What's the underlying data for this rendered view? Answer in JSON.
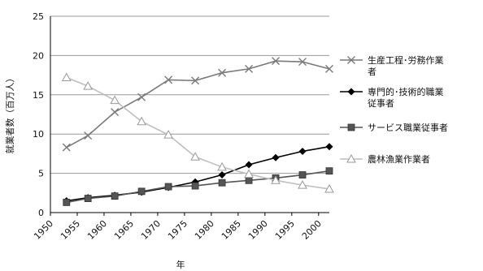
{
  "chart_data": {
    "type": "line",
    "xlabel": "年",
    "ylabel": "就業者数（百万人）",
    "x": [
      1953,
      1957,
      1962,
      1967,
      1972,
      1977,
      1982,
      1987,
      1992,
      1997,
      2002
    ],
    "xticks": [
      "1950",
      "1955",
      "1960",
      "1965",
      "1970",
      "1975",
      "1980",
      "1985",
      "1990",
      "1995",
      "2000"
    ],
    "xlim": [
      1950,
      2002
    ],
    "ylim": [
      0,
      25
    ],
    "yticks": [
      0,
      5,
      10,
      15,
      20,
      25
    ],
    "grid": "horizontal",
    "legend_position": "right",
    "series": [
      {
        "name": "生産工程･労務作業者",
        "marker": "x",
        "color": "#7a7a7a",
        "values": [
          8.3,
          9.8,
          12.8,
          14.7,
          16.9,
          16.8,
          17.8,
          18.3,
          19.3,
          19.2,
          18.3
        ]
      },
      {
        "name": "専門的･技術的職業従事者",
        "marker": "diamond",
        "color": "#000000",
        "values": [
          1.5,
          1.9,
          2.2,
          2.6,
          3.2,
          3.9,
          4.8,
          6.1,
          7.0,
          7.8,
          8.4
        ]
      },
      {
        "name": "サービス職業従事者",
        "marker": "square",
        "color": "#555555",
        "values": [
          1.3,
          1.8,
          2.1,
          2.7,
          3.3,
          3.4,
          3.8,
          4.1,
          4.4,
          4.8,
          5.3
        ]
      },
      {
        "name": "農林漁業作業者",
        "marker": "triangle",
        "color": "#bfbfbf",
        "values": [
          17.2,
          16.1,
          14.3,
          11.6,
          9.9,
          7.1,
          5.8,
          4.9,
          4.1,
          3.5,
          3.0
        ]
      }
    ]
  }
}
